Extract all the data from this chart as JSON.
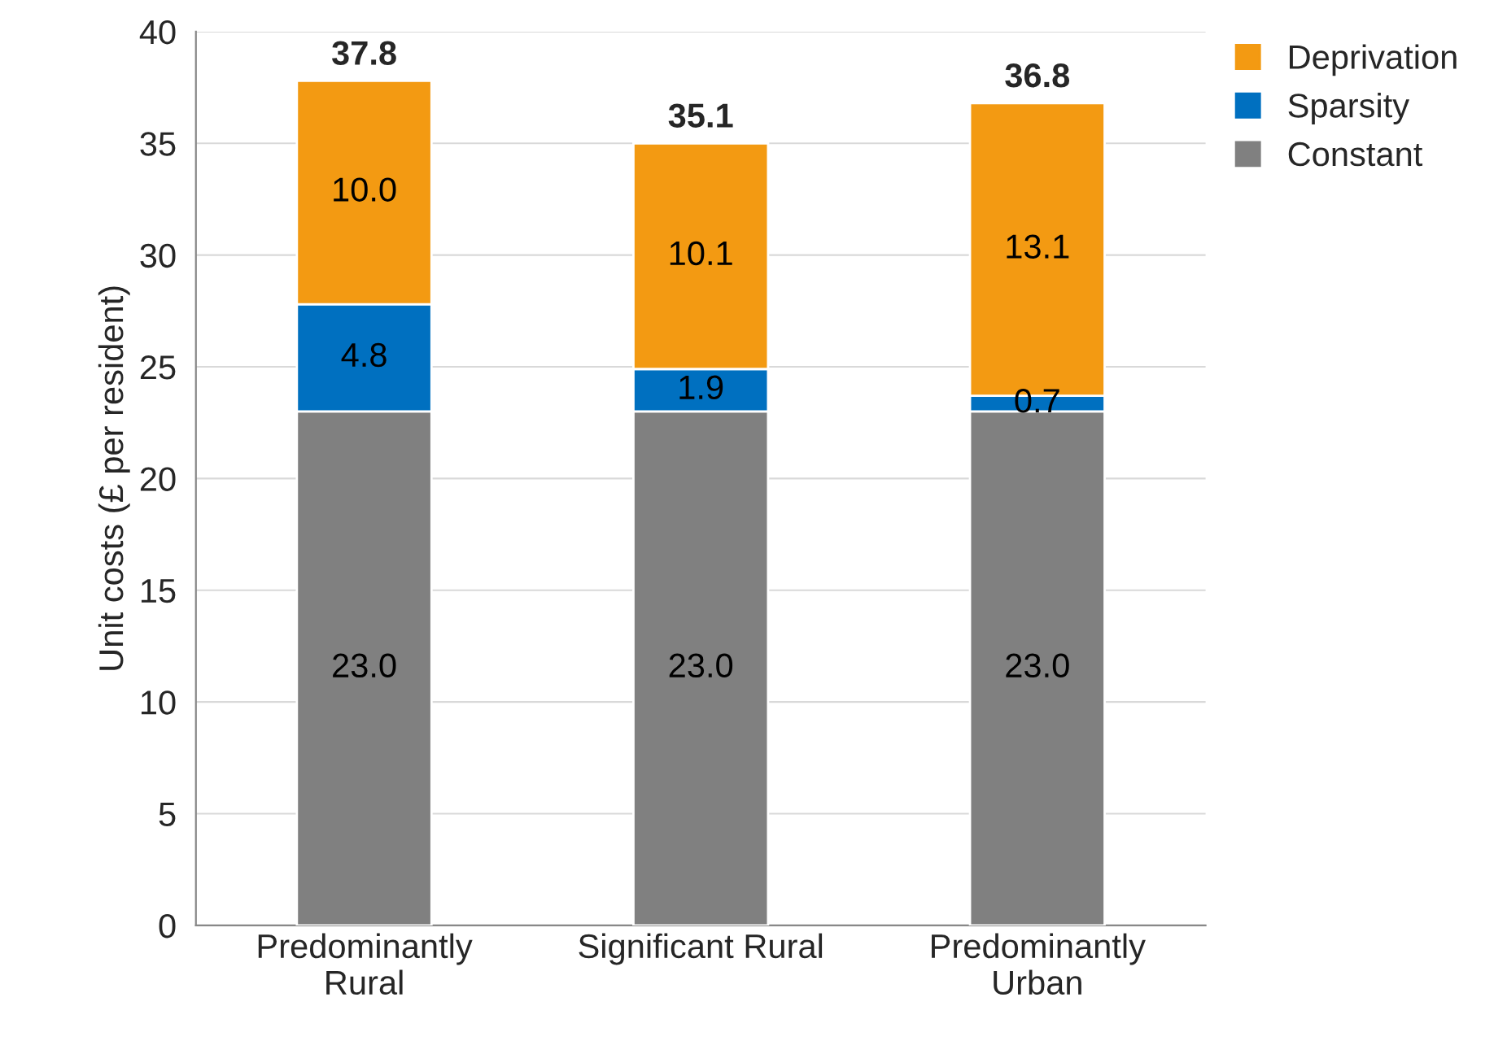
{
  "chart_data": {
    "type": "bar",
    "stacked": true,
    "ylabel": "Unit costs (£ per resident)",
    "categories": [
      "Predominantly\nRural",
      "Significant Rural",
      "Predominantly\nUrban"
    ],
    "series": [
      {
        "name": "Constant",
        "color": "#808080",
        "values": [
          23.0,
          23.0,
          23.0
        ],
        "value_labels": [
          "23.0",
          "23.0",
          "23.0"
        ]
      },
      {
        "name": "Sparsity",
        "color": "#0070c0",
        "values": [
          4.8,
          1.9,
          0.7
        ],
        "value_labels": [
          "4.8",
          "1.9",
          "0.7"
        ]
      },
      {
        "name": "Deprivation",
        "color": "#f39a12",
        "values": [
          10.0,
          10.1,
          13.1
        ],
        "value_labels": [
          "10.0",
          "10.1",
          "13.1"
        ]
      }
    ],
    "totals": [
      "37.8",
      "35.1",
      "36.8"
    ],
    "ylim": [
      0,
      40
    ],
    "yticks": [
      0,
      5,
      10,
      15,
      20,
      25,
      30,
      35,
      40
    ],
    "grid": "y",
    "legend": "top right"
  }
}
